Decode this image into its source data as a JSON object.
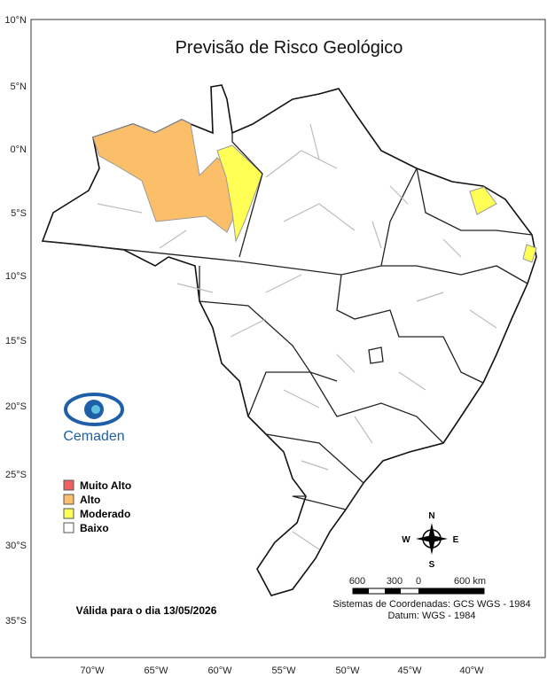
{
  "title": "Previsão de Risco Geológico",
  "lat_labels": [
    "10°N",
    "5°N",
    "0°N",
    "5°S",
    "10°S",
    "15°S",
    "20°S",
    "25°S",
    "30°S",
    "35°S"
  ],
  "lon_labels": [
    "70°W",
    "65°W",
    "60°W",
    "55°W",
    "50°W",
    "45°W",
    "40°W"
  ],
  "logo": "Cemaden",
  "legend": [
    {
      "label": "Muito Alto",
      "color": "#f06060"
    },
    {
      "label": "Alto",
      "color": "#fbbf6a"
    },
    {
      "label": "Moderado",
      "color": "#ffff55"
    },
    {
      "label": "Baixo",
      "color": "#ffffff"
    }
  ],
  "valid_text": "Válida para o dia 13/05/2026",
  "compass": {
    "n": "N",
    "s": "S",
    "e": "E",
    "w": "W"
  },
  "scale_labels": [
    "600",
    "300",
    "0",
    "600 km"
  ],
  "coord_system": "Sistemas de Coordenadas: GCS WGS - 1984",
  "datum": "Datum: WGS - 1984"
}
